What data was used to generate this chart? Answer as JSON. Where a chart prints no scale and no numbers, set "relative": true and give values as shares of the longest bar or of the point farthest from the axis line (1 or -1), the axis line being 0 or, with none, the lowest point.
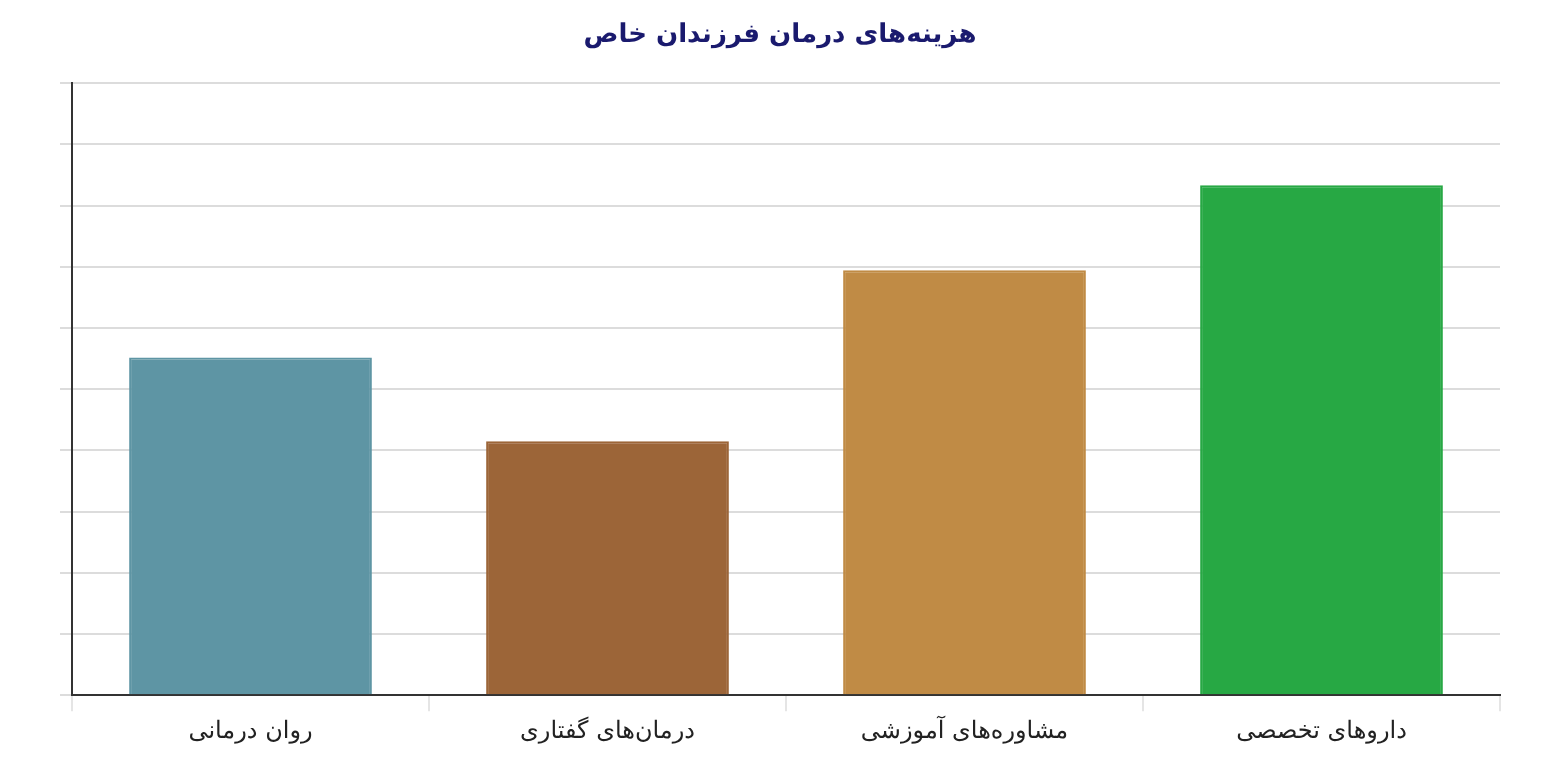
{
  "chart_data": {
    "type": "bar",
    "title": "هزینه‌های درمان فرزندان خاص",
    "categories": [
      "روان درمانی",
      "درمان‌های گفتاری",
      "مشاوره‌های آموزشی",
      "داروهای تخصصی"
    ],
    "values": [
      0.662,
      0.498,
      0.833,
      1
    ],
    "colors": [
      "#5e95a4",
      "#9c6538",
      "#c08b45",
      "#27a844"
    ],
    "relative": true,
    "grid": true
  }
}
